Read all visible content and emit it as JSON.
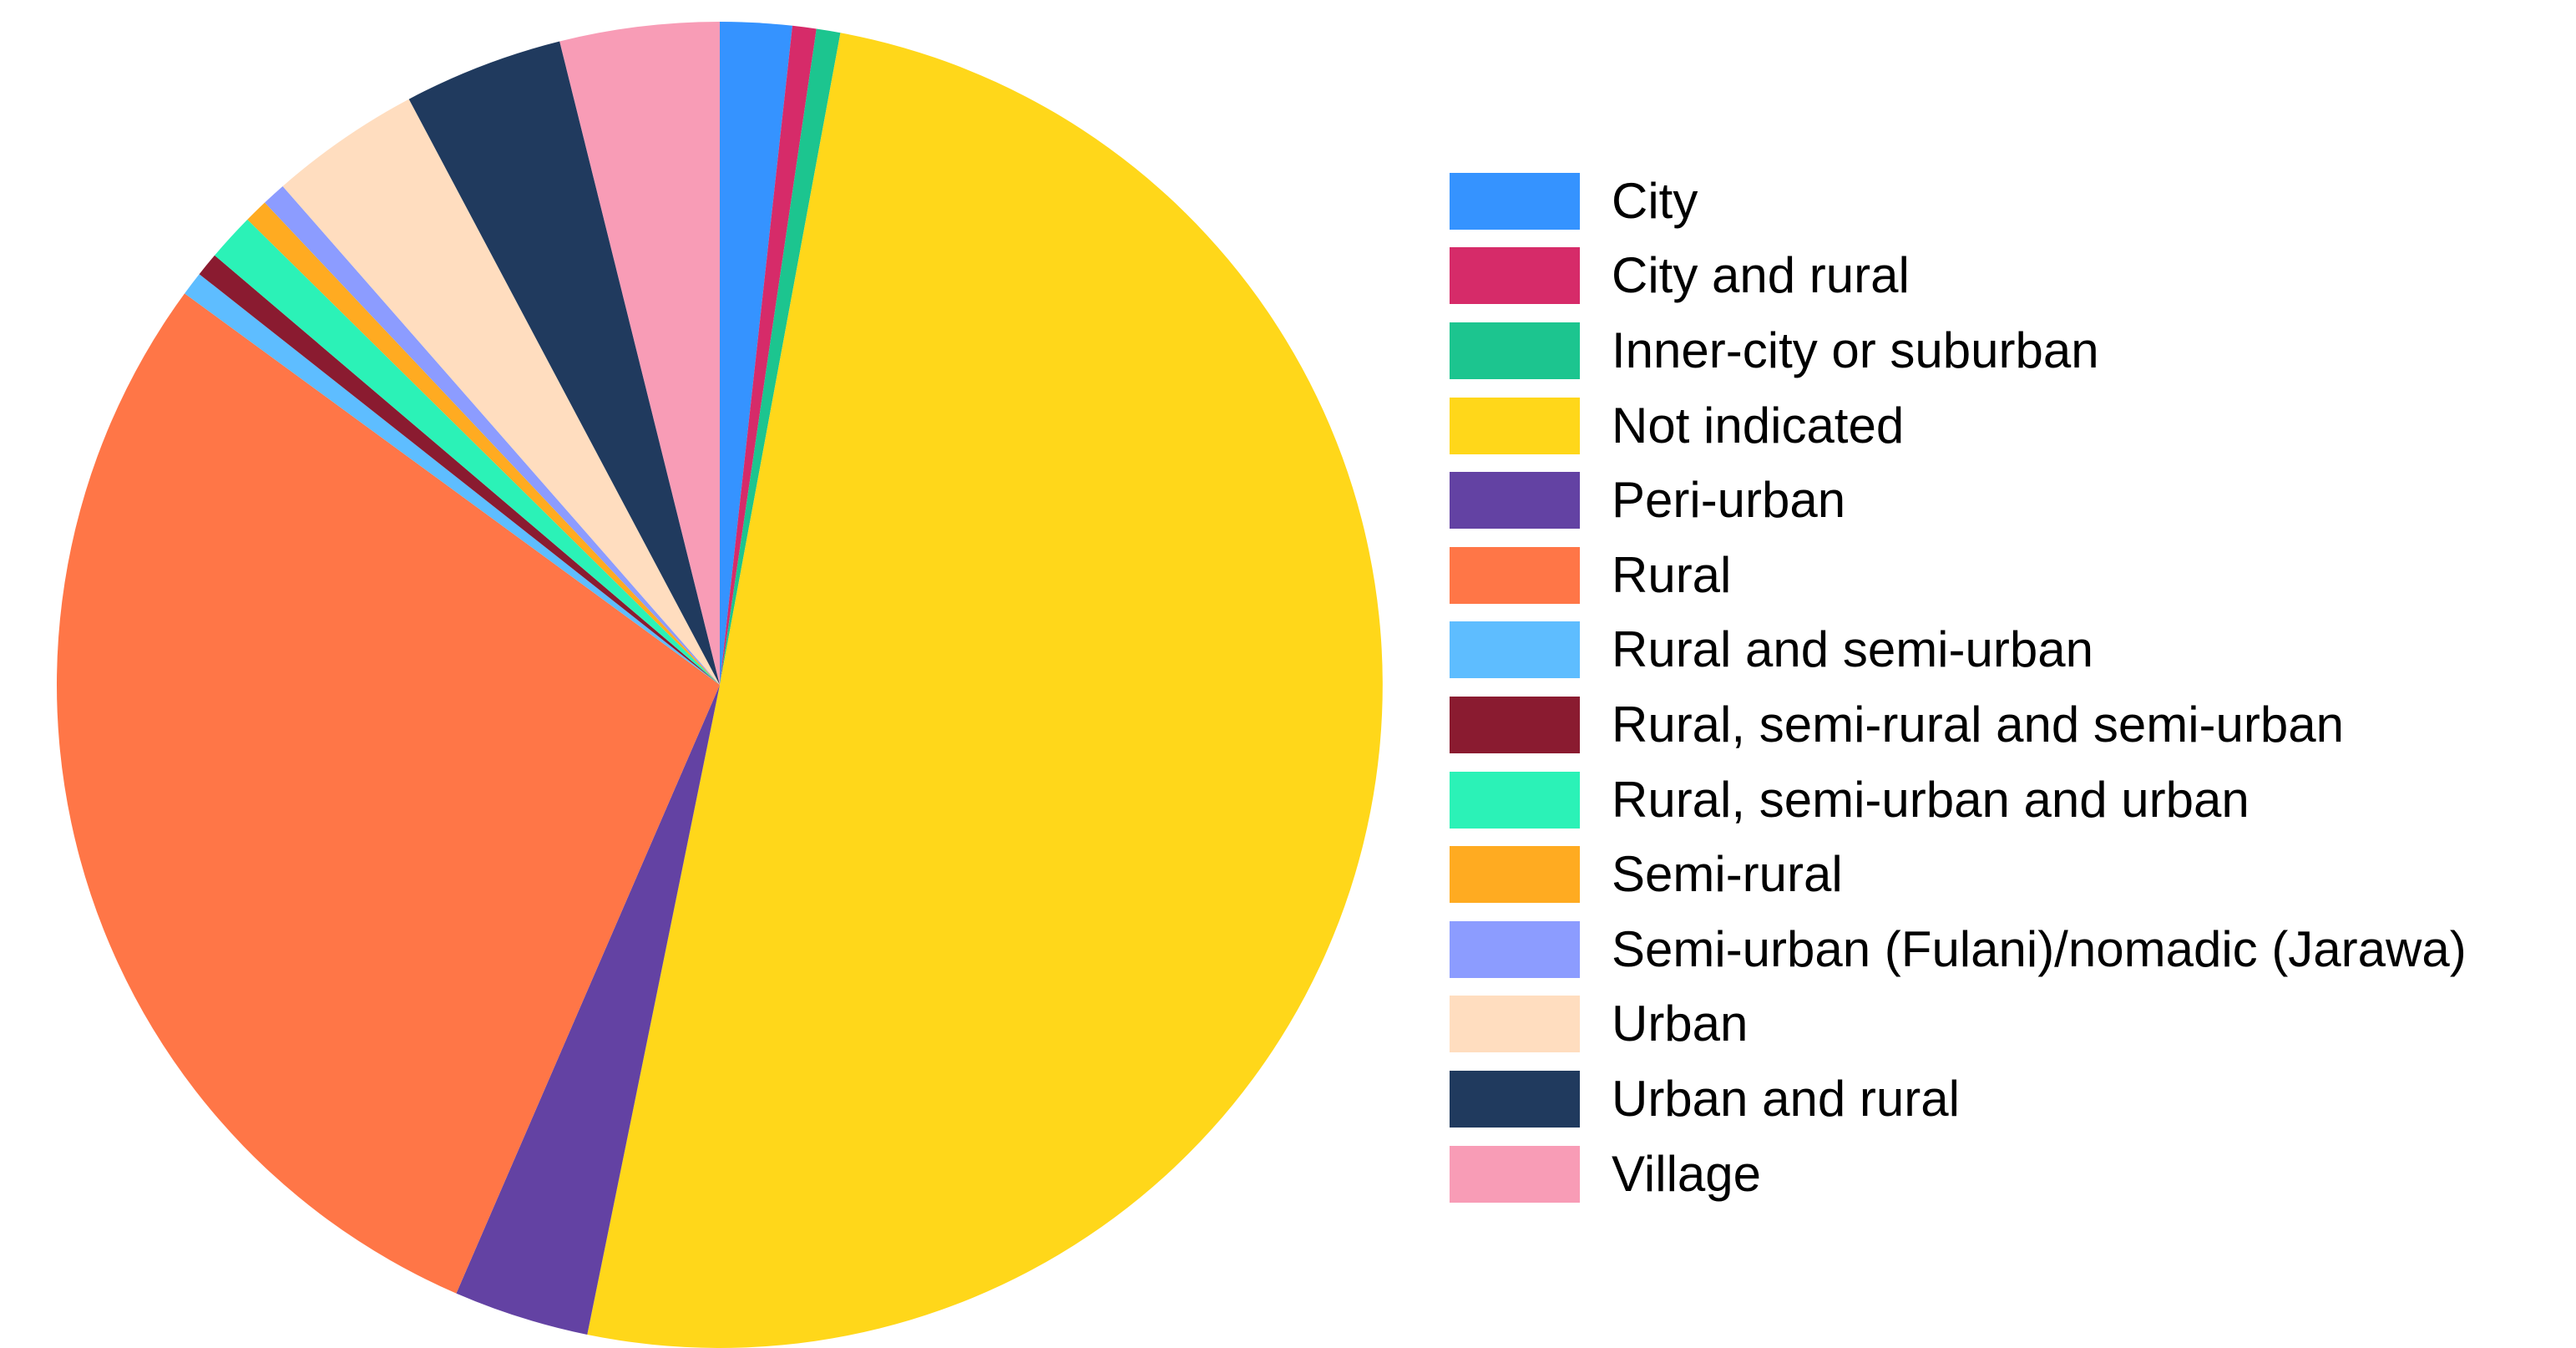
{
  "chart_data": {
    "type": "pie",
    "title": "",
    "legend_placement": "right",
    "start_angle": "12 o'clock",
    "direction": "clockwise",
    "slices": [
      {
        "label": "City",
        "value": 1.8,
        "color": "#3593FF"
      },
      {
        "label": "City and rural",
        "value": 0.6,
        "color": "#D62B69"
      },
      {
        "label": "Inner-city or suburban",
        "value": 0.6,
        "color": "#1CC58F"
      },
      {
        "label": "Not indicated",
        "value": 51.8,
        "color": "#FFD71A"
      },
      {
        "label": "Peri-urban",
        "value": 3.4,
        "color": "#6342A3"
      },
      {
        "label": "Rural",
        "value": 29.4,
        "color": "#FF7647"
      },
      {
        "label": "Rural and semi-urban",
        "value": 0.6,
        "color": "#5EBDFF"
      },
      {
        "label": "Rural, semi-rural and semi-urban",
        "value": 0.6,
        "color": "#8A1B30"
      },
      {
        "label": "Rural, semi-urban and urban",
        "value": 1.2,
        "color": "#2BF2B7"
      },
      {
        "label": "Semi-rural",
        "value": 0.6,
        "color": "#FFAB21"
      },
      {
        "label": "Semi-urban (Fulani)/nomadic (Jarawa)",
        "value": 0.6,
        "color": "#8C9CFF"
      },
      {
        "label": "Urban",
        "value": 3.8,
        "color": "#FFDDBF"
      },
      {
        "label": "Urban and rural",
        "value": 4.0,
        "color": "#203A5E"
      },
      {
        "label": "Village",
        "value": 4.0,
        "color": "#F89CB6"
      }
    ]
  }
}
